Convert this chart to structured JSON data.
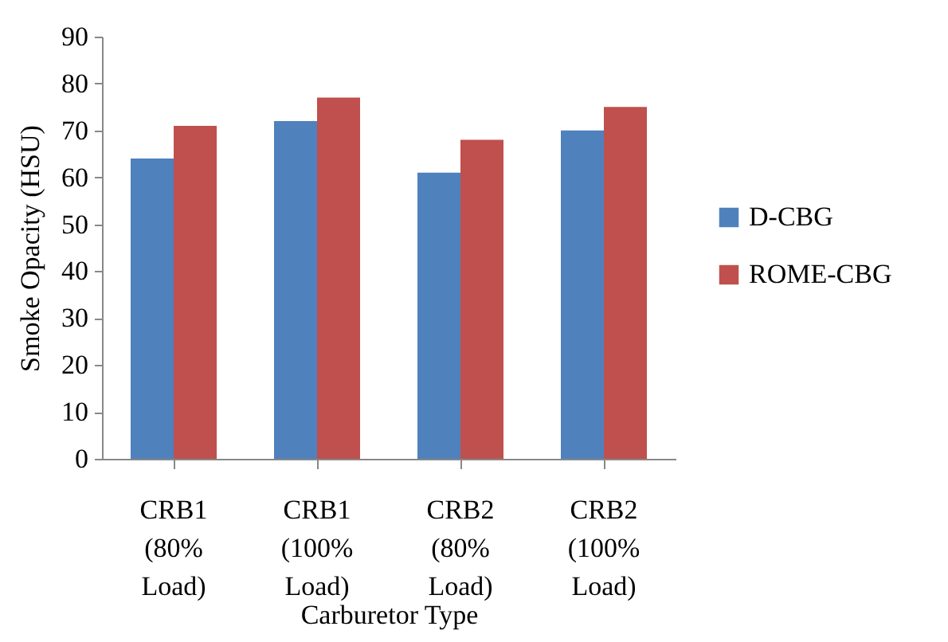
{
  "chart_data": {
    "type": "bar",
    "xlabel": "Carburetor Type",
    "ylabel": "Smoke Opacity (HSU)",
    "categories": [
      "CRB1 (80% Load)",
      "CRB1 (100% Load)",
      "CRB2 (80% Load)",
      "CRB2 (100% Load)"
    ],
    "series": [
      {
        "name": "D-CBG",
        "color": "#4f81bd",
        "values": [
          64,
          72,
          61,
          70
        ]
      },
      {
        "name": "ROME-CBG",
        "color": "#c0504d",
        "values": [
          71,
          77,
          68,
          75
        ]
      }
    ],
    "ylim": [
      0,
      90
    ],
    "yticks": [
      0,
      10,
      20,
      30,
      40,
      50,
      60,
      70,
      80,
      90
    ],
    "grid": false,
    "legend": "right"
  }
}
